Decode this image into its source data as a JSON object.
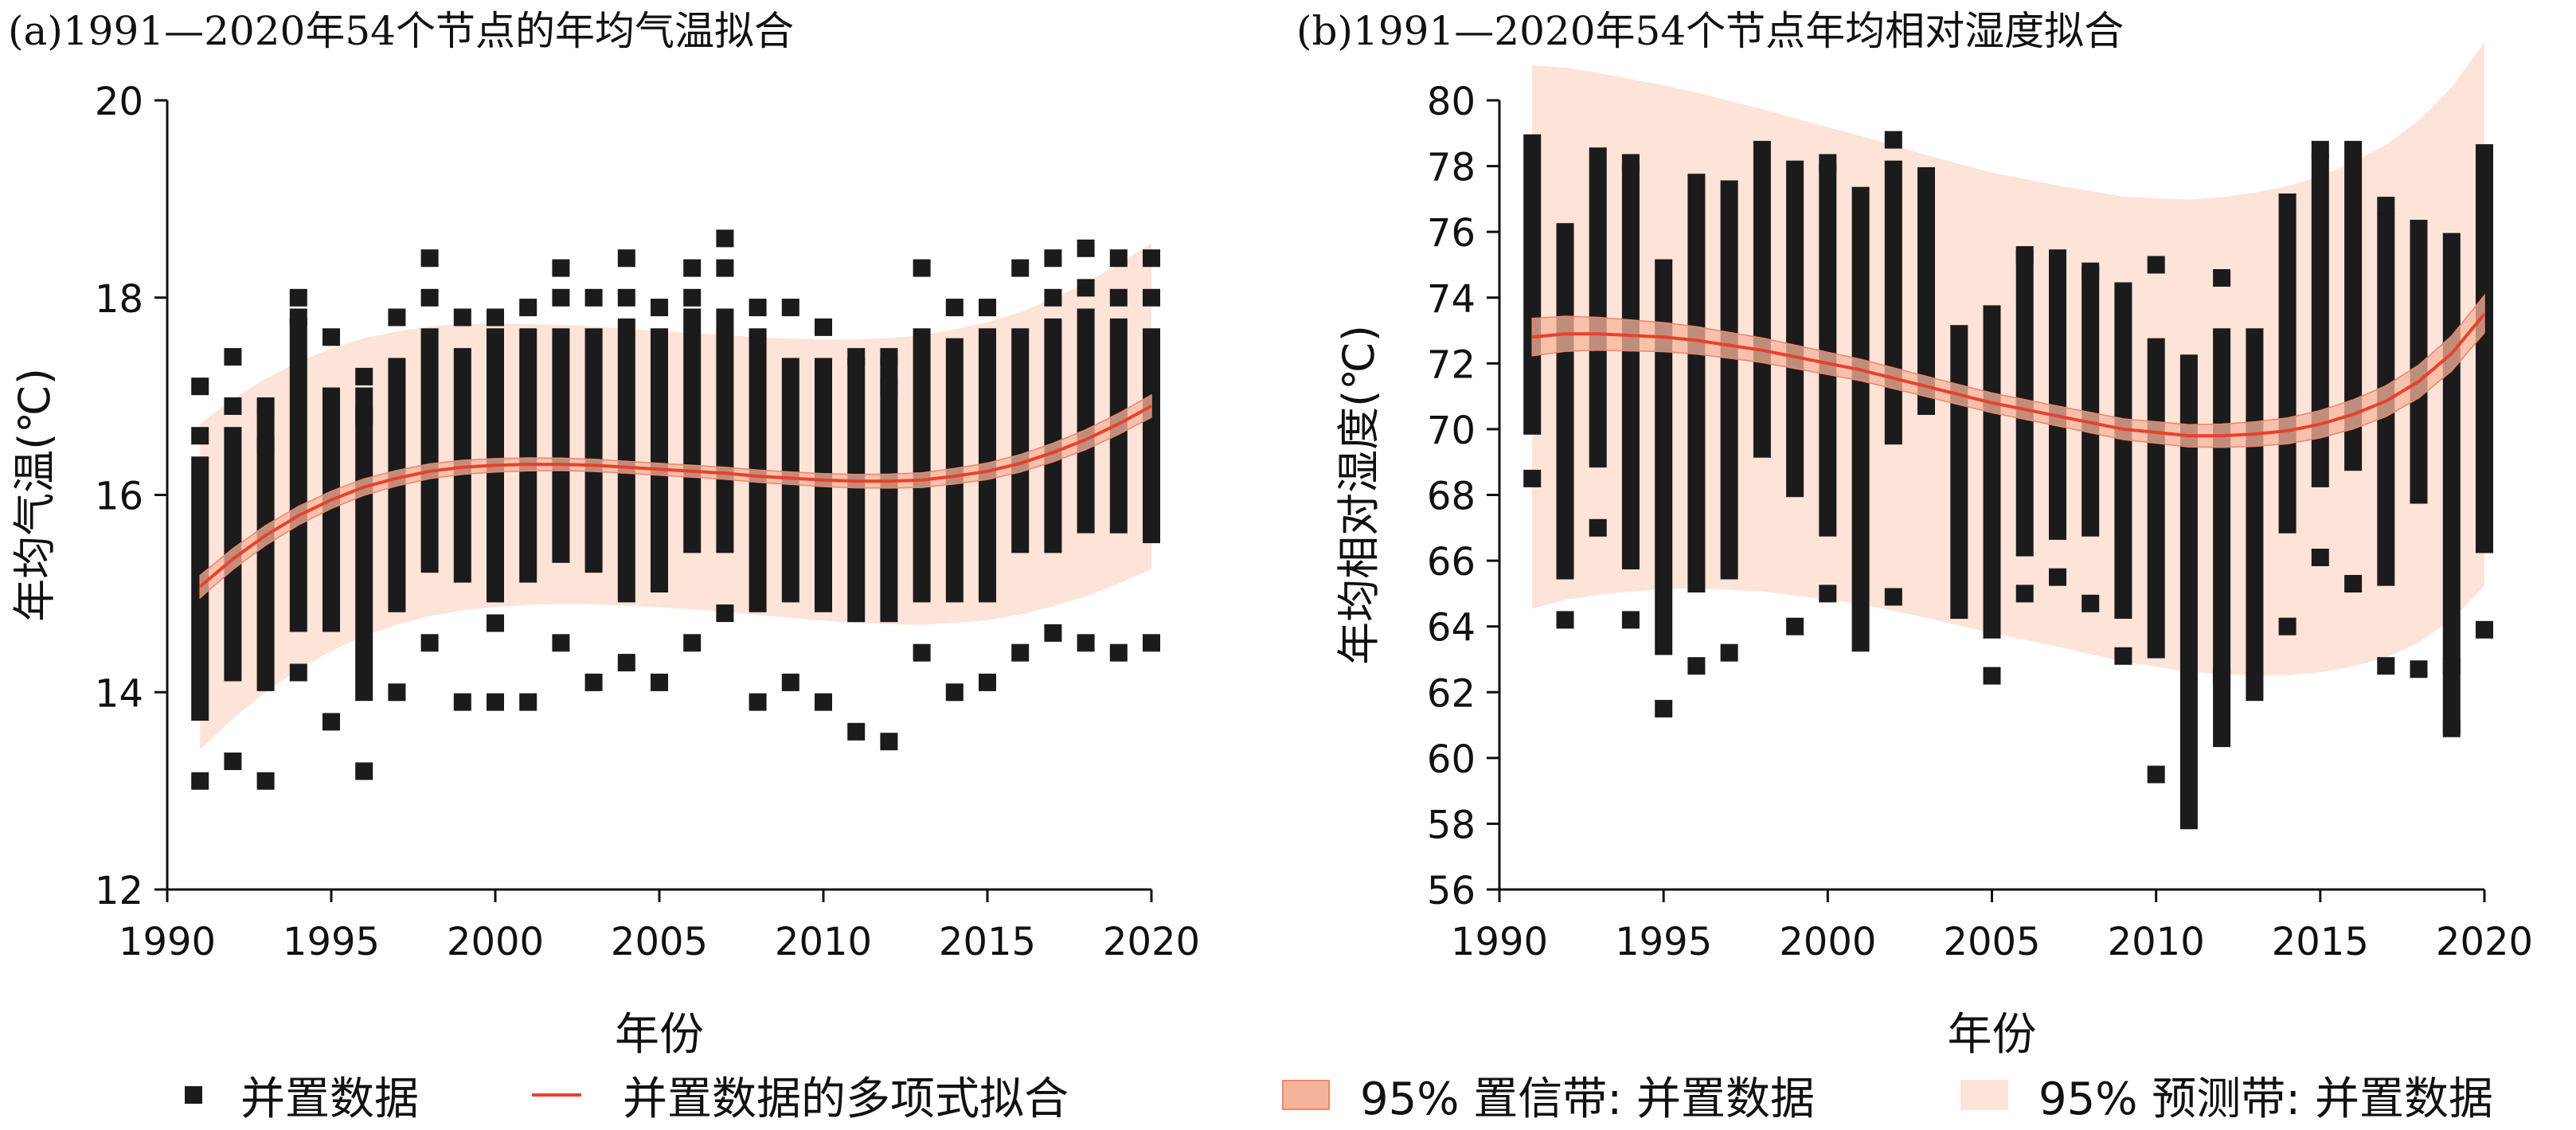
{
  "chart_data": [
    {
      "type": "scatter",
      "title": "(a)1991—2020年54个节点的年均气温拟合",
      "xlabel": "年份",
      "ylabel": "年均气温(℃)",
      "xlim": [
        1990,
        2020
      ],
      "ylim": [
        12,
        20
      ],
      "xticks": [
        1990,
        1995,
        2000,
        2005,
        2010,
        2015,
        2020
      ],
      "yticks": [
        12,
        14,
        16,
        18,
        20
      ],
      "x": [
        1991,
        1992,
        1993,
        1994,
        1995,
        1996,
        1997,
        1998,
        1999,
        2000,
        2001,
        2002,
        2003,
        2004,
        2005,
        2006,
        2007,
        2008,
        2009,
        2010,
        2011,
        2012,
        2013,
        2014,
        2015,
        2016,
        2017,
        2018,
        2019,
        2020
      ],
      "series": [
        {
          "name": "并置数据",
          "role": "points",
          "ymin": [
            13.8,
            14.2,
            14.1,
            14.7,
            14.7,
            14.0,
            14.9,
            15.3,
            15.2,
            15.0,
            15.2,
            15.4,
            15.3,
            15.0,
            15.1,
            15.5,
            15.5,
            14.9,
            15.0,
            14.9,
            14.8,
            14.8,
            15.0,
            15.0,
            15.0,
            15.5,
            15.5,
            15.7,
            15.7,
            15.6
          ],
          "ymax": [
            16.3,
            16.6,
            16.8,
            17.7,
            17.0,
            17.0,
            17.3,
            17.6,
            17.4,
            17.6,
            17.6,
            17.6,
            17.6,
            17.7,
            17.6,
            17.8,
            17.8,
            17.6,
            17.3,
            17.3,
            17.3,
            17.3,
            17.6,
            17.5,
            17.6,
            17.6,
            17.7,
            17.8,
            17.7,
            17.6
          ],
          "outliers": [
            [
              17.1,
              16.6,
              13.1
            ],
            [
              17.4,
              16.9,
              13.3
            ],
            [
              16.9,
              16.5,
              13.1
            ],
            [
              18.0,
              17.8,
              14.2
            ],
            [
              17.6,
              13.7
            ],
            [
              17.2,
              16.8,
              13.2
            ],
            [
              17.8,
              14.0
            ],
            [
              18.4,
              18.0,
              14.5
            ],
            [
              17.8,
              13.9
            ],
            [
              17.8,
              14.7,
              13.9
            ],
            [
              17.9,
              13.9
            ],
            [
              18.3,
              18.0,
              14.5
            ],
            [
              18.0,
              14.1
            ],
            [
              18.4,
              18.0,
              14.3
            ],
            [
              17.9,
              14.1
            ],
            [
              18.3,
              18.0,
              14.5
            ],
            [
              18.6,
              18.3,
              14.8
            ],
            [
              17.9,
              13.9
            ],
            [
              17.9,
              14.1
            ],
            [
              17.7,
              13.9
            ],
            [
              17.4,
              13.6
            ],
            [
              17.4,
              17.1,
              13.5
            ],
            [
              18.3,
              14.4
            ],
            [
              17.9,
              14.0
            ],
            [
              17.9,
              14.1
            ],
            [
              18.3,
              14.4
            ],
            [
              18.4,
              18.0,
              14.6
            ],
            [
              18.5,
              18.1,
              14.5
            ],
            [
              18.4,
              18.0,
              14.4
            ],
            [
              18.4,
              18.0,
              14.5
            ]
          ]
        },
        {
          "name": "并置数据的多项式拟合",
          "role": "fit",
          "values": [
            15.07,
            15.35,
            15.59,
            15.79,
            15.95,
            16.08,
            16.17,
            16.24,
            16.28,
            16.3,
            16.31,
            16.31,
            16.3,
            16.28,
            16.26,
            16.24,
            16.22,
            16.19,
            16.17,
            16.15,
            16.14,
            16.14,
            16.15,
            16.19,
            16.24,
            16.32,
            16.43,
            16.56,
            16.72,
            16.9
          ]
        },
        {
          "name": "95% 置信带: 并置数据",
          "role": "confidence",
          "halfwidth": 0.06
        },
        {
          "name": "95% 预测带: 并置数据",
          "role": "prediction",
          "halfwidth": 1.4
        }
      ]
    },
    {
      "type": "scatter",
      "title": "(b)1991—2020年54个节点年均相对湿度拟合",
      "xlabel": "年份",
      "ylabel": "年均相对湿度(℃)",
      "xlim": [
        1990,
        2020
      ],
      "ylim": [
        56,
        80
      ],
      "xticks": [
        1990,
        1995,
        2000,
        2005,
        2010,
        2015,
        2020
      ],
      "yticks": [
        56,
        58,
        60,
        62,
        64,
        66,
        68,
        70,
        72,
        74,
        76,
        78,
        80
      ],
      "x": [
        1991,
        1992,
        1993,
        1994,
        1995,
        1996,
        1997,
        1998,
        1999,
        2000,
        2001,
        2002,
        2003,
        2004,
        2005,
        2006,
        2007,
        2008,
        2009,
        2010,
        2011,
        2012,
        2013,
        2014,
        2015,
        2016,
        2017,
        2018,
        2019,
        2020
      ],
      "series": [
        {
          "name": "并置数据",
          "role": "points",
          "ymin": [
            70.1,
            65.7,
            69.1,
            66.0,
            63.4,
            65.3,
            65.7,
            69.4,
            68.2,
            67.0,
            63.5,
            69.8,
            70.7,
            64.5,
            63.9,
            66.4,
            66.9,
            67.0,
            64.5,
            63.3,
            58.1,
            60.6,
            62.0,
            67.1,
            68.5,
            69.0,
            65.5,
            68.0,
            61.0,
            66.5
          ],
          "ymax": [
            78.7,
            76.0,
            78.3,
            77.8,
            74.9,
            77.5,
            77.3,
            78.5,
            77.9,
            77.8,
            77.1,
            77.9,
            77.7,
            72.9,
            73.5,
            75.2,
            75.2,
            74.7,
            74.2,
            72.5,
            72.0,
            72.8,
            72.8,
            76.9,
            78.1,
            78.5,
            76.3,
            76.1,
            75.7,
            78.4
          ],
          "outliers": [
            [
              68.5
            ],
            [
              64.2
            ],
            [
              67.0
            ],
            [
              78.1,
              64.2
            ],
            [
              61.5
            ],
            [
              62.8
            ],
            [
              63.2
            ],
            [],
            [
              64.0
            ],
            [
              78.1,
              65.0
            ],
            [],
            [
              78.8,
              64.9
            ],
            [],
            [],
            [
              62.5
            ],
            [
              75.3,
              65.0
            ],
            [
              65.5
            ],
            [
              74.8,
              64.7
            ],
            [
              63.1
            ],
            [
              75.0,
              59.5
            ],
            [],
            [
              74.6,
              62.5
            ],
            [],
            [
              64.0
            ],
            [
              78.5,
              66.1
            ],
            [
              65.3
            ],
            [
              76.8,
              62.8
            ],
            [
              62.7
            ],
            [
              62.8,
              60.9
            ],
            [
              63.9
            ]
          ]
        },
        {
          "name": "并置数据的多项式拟合",
          "role": "fit",
          "values": [
            72.8,
            72.9,
            72.9,
            72.85,
            72.8,
            72.7,
            72.55,
            72.4,
            72.2,
            72.0,
            71.8,
            71.55,
            71.3,
            71.05,
            70.8,
            70.6,
            70.4,
            70.2,
            70.0,
            69.9,
            69.8,
            69.8,
            69.85,
            69.95,
            70.15,
            70.45,
            70.85,
            71.45,
            72.3,
            73.5
          ]
        },
        {
          "name": "95% 置信带: 并置数据",
          "role": "confidence",
          "halfwidth": 0.3
        },
        {
          "name": "95% 预测带: 并置数据",
          "role": "prediction",
          "halfwidth": 7.0
        }
      ]
    }
  ],
  "legend": {
    "points": "并置数据",
    "fit": "并置数据的多项式拟合",
    "confidence": "95% 置信带: 并置数据",
    "prediction": "95% 预测带: 并置数据"
  },
  "colors": {
    "points": "#1b1b1b",
    "fit": "#e8412a",
    "confidence": "#f7b49c",
    "prediction": "#fde3d8",
    "axis": "#111111"
  }
}
